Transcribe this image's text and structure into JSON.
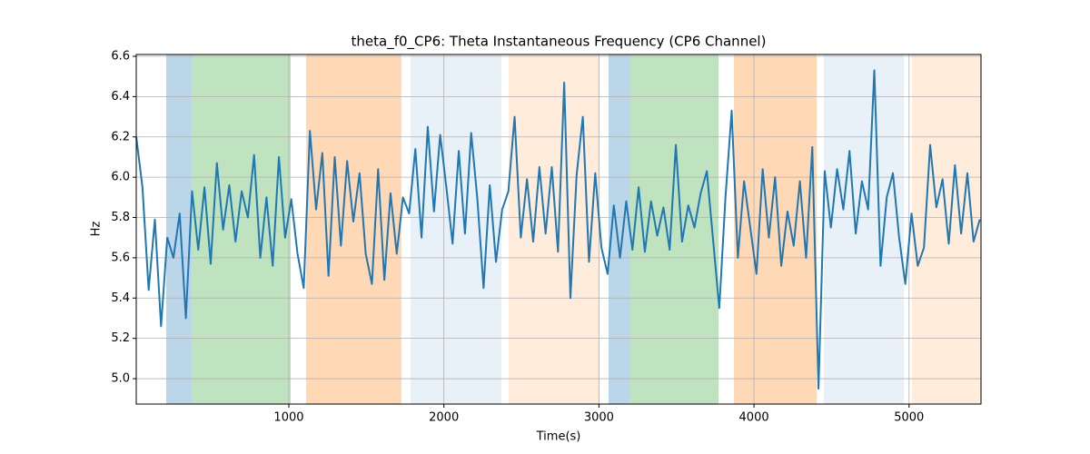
{
  "chart_data": {
    "type": "line",
    "title": "theta_f0_CP6: Theta Instantaneous Frequency (CP6 Channel)",
    "xlabel": "Time(s)",
    "ylabel": "Hz",
    "color": "#1f77b4",
    "grid": true,
    "xlim": [
      16,
      5464
    ],
    "ylim": [
      4.874,
      6.609
    ],
    "xticks": [
      1000,
      2000,
      3000,
      4000,
      5000
    ],
    "yticks": [
      {
        "value": 5,
        "label": "5.0"
      },
      5.2,
      5.4,
      5.6,
      5.8,
      {
        "value": 6,
        "label": "6.0"
      },
      6.2,
      6.4,
      6.6
    ],
    "spans": [
      {
        "start": 209,
        "end": 373,
        "color": "#1f77b4",
        "alpha": 0.3
      },
      {
        "start": 373,
        "end": 1012,
        "color": "#2ca02c",
        "alpha": 0.3
      },
      {
        "start": 1111,
        "end": 1726,
        "color": "#ff7f0e",
        "alpha": 0.3
      },
      {
        "start": 1785,
        "end": 2371,
        "color": "#1f77b4",
        "alpha": 0.1
      },
      {
        "start": 2418,
        "end": 3004,
        "color": "#ff7f0e",
        "alpha": 0.15
      },
      {
        "start": 3062,
        "end": 3197,
        "color": "#1f77b4",
        "alpha": 0.3
      },
      {
        "start": 3197,
        "end": 3771,
        "color": "#2ca02c",
        "alpha": 0.3
      },
      {
        "start": 3871,
        "end": 4404,
        "color": "#ff7f0e",
        "alpha": 0.3
      },
      {
        "start": 4451,
        "end": 4966,
        "color": "#1f77b4",
        "alpha": 0.1
      },
      {
        "start": 5019,
        "end": 5464,
        "color": "#ff7f0e",
        "alpha": 0.15
      }
    ],
    "x": [
      16,
      56,
      96,
      136,
      176,
      216,
      256,
      296,
      336,
      376,
      416,
      456,
      496,
      536,
      576,
      616,
      656,
      696,
      736,
      776,
      816,
      856,
      896,
      936,
      976,
      1016,
      1056,
      1096,
      1136,
      1176,
      1216,
      1256,
      1296,
      1336,
      1376,
      1416,
      1456,
      1496,
      1536,
      1576,
      1616,
      1656,
      1696,
      1736,
      1776,
      1816,
      1856,
      1896,
      1936,
      1976,
      2016,
      2056,
      2096,
      2136,
      2176,
      2216,
      2256,
      2296,
      2336,
      2376,
      2416,
      2456,
      2496,
      2536,
      2576,
      2616,
      2656,
      2696,
      2736,
      2776,
      2816,
      2856,
      2896,
      2936,
      2976,
      3016,
      3056,
      3096,
      3136,
      3176,
      3216,
      3256,
      3296,
      3336,
      3376,
      3416,
      3456,
      3496,
      3536,
      3576,
      3616,
      3656,
      3696,
      3736,
      3776,
      3816,
      3856,
      3896,
      3936,
      3976,
      4016,
      4056,
      4096,
      4136,
      4176,
      4216,
      4256,
      4296,
      4336,
      4376,
      4416,
      4456,
      4496,
      4536,
      4576,
      4616,
      4656,
      4696,
      4736,
      4776,
      4816,
      4856,
      4896,
      4936,
      4976,
      5016,
      5056,
      5096,
      5136,
      5176,
      5216,
      5256,
      5296,
      5336,
      5376,
      5416,
      5456
    ],
    "values": [
      6.2,
      5.95,
      5.44,
      5.79,
      5.26,
      5.7,
      5.6,
      5.82,
      5.3,
      5.93,
      5.64,
      5.95,
      5.57,
      6.07,
      5.74,
      5.96,
      5.68,
      5.93,
      5.8,
      6.11,
      5.6,
      5.9,
      5.56,
      6.1,
      5.7,
      5.89,
      5.62,
      5.45,
      6.23,
      5.84,
      6.12,
      5.51,
      6.1,
      5.66,
      6.08,
      5.78,
      6.02,
      5.62,
      5.47,
      6.04,
      5.49,
      5.92,
      5.62,
      5.9,
      5.82,
      6.14,
      5.7,
      6.25,
      5.83,
      6.21,
      5.95,
      5.67,
      6.13,
      5.72,
      6.22,
      5.89,
      5.45,
      5.96,
      5.58,
      5.84,
      5.93,
      6.3,
      5.7,
      5.99,
      5.68,
      6.05,
      5.72,
      6.05,
      5.63,
      6.47,
      5.4,
      6.01,
      6.3,
      5.58,
      6.02,
      5.65,
      5.52,
      5.86,
      5.6,
      5.88,
      5.64,
      5.95,
      5.63,
      5.88,
      5.71,
      5.85,
      5.64,
      6.16,
      5.68,
      5.86,
      5.75,
      5.92,
      6.03,
      5.69,
      5.35,
      5.9,
      6.33,
      5.6,
      5.98,
      5.75,
      5.52,
      6.04,
      5.7,
      6.0,
      5.56,
      5.83,
      5.66,
      5.98,
      5.6,
      6.15,
      4.95,
      6.03,
      5.75,
      6.04,
      5.84,
      6.13,
      5.72,
      5.98,
      5.84,
      6.53,
      5.56,
      5.9,
      6.02,
      5.7,
      5.47,
      5.82,
      5.56,
      5.65,
      6.16,
      5.85,
      5.99,
      5.67,
      6.06,
      5.72,
      6.02,
      5.68,
      5.79
    ]
  }
}
